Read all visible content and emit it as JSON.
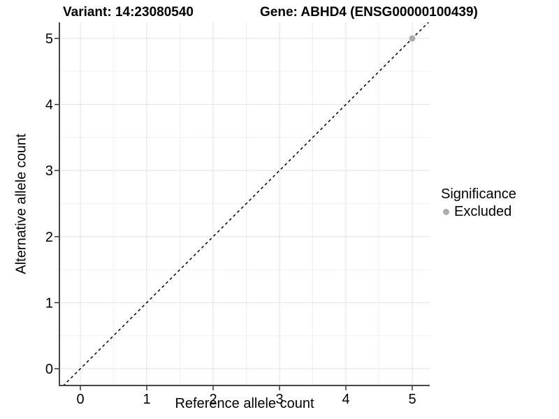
{
  "titles": {
    "variant": "Variant: 14:23080540",
    "gene": "Gene: ABHD4 (ENSG00000100439)"
  },
  "chart_data": {
    "type": "scatter",
    "xlabel": "Reference allele count",
    "ylabel": "Alternative allele count",
    "xlim": [
      -0.32,
      5.26
    ],
    "ylim": [
      -0.25,
      5.24
    ],
    "xticks": [
      0,
      1,
      2,
      3,
      4,
      5
    ],
    "yticks": [
      0,
      1,
      2,
      3,
      4,
      5
    ],
    "xminor": [
      0.5,
      1.5,
      2.5,
      3.5,
      4.5
    ],
    "yminor": [
      0.5,
      1.5,
      2.5,
      3.5,
      4.5
    ],
    "grid": true,
    "reference_line": {
      "type": "abline",
      "slope": 1,
      "intercept": 0,
      "style": "dashed"
    },
    "series": [
      {
        "name": "Excluded",
        "color": "#ababab",
        "points": [
          {
            "x": 5,
            "y": 5
          }
        ]
      }
    ],
    "legend": {
      "position": "right",
      "title": "Significance",
      "entries": [
        {
          "label": "Excluded",
          "color": "#ababab"
        }
      ]
    }
  },
  "colors": {
    "background": "#ffffff",
    "grid_major": "#e2e2e2",
    "grid_minor": "#f0f0f0",
    "axis_line": "#464646",
    "tick_mark": "#333333",
    "tick_label": "#000000",
    "reference_line": "#000000",
    "point": "#ababab"
  }
}
